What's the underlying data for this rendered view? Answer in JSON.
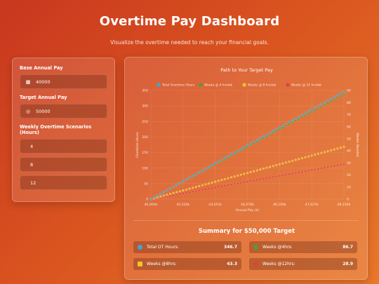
{
  "header": {
    "title": "Overtime Pay Dashboard",
    "subtitle": "Visualize the overtime needed to reach your financial goals."
  },
  "inputs": {
    "base_label": "Base Annual Pay",
    "base_value": "40000",
    "base_icon": "money-icon",
    "target_label": "Target Annual Pay",
    "target_value": "50000",
    "target_icon": "target-icon",
    "scenarios_label": "Weekly Overtime Scenarios (Hours)",
    "scenarios": [
      "4",
      "8",
      "12"
    ]
  },
  "chart_data": {
    "type": "line",
    "title": "Path to Your Target Pay",
    "xlabel": "Annual Pay ($)",
    "ylabel_left": "Overtime Hours",
    "ylabel_right": "Weeks Needed",
    "x_ticks": [
      "40,000k",
      "41,535k",
      "43,051k",
      "44,576k",
      "46,100k",
      "47,637k",
      "49,150k"
    ],
    "y_left_ticks": [
      "0",
      "50",
      "100",
      "150",
      "200",
      "250",
      "300",
      "350"
    ],
    "y_right_ticks": [
      "0",
      "10",
      "20",
      "30",
      "40",
      "50",
      "60",
      "70",
      "80",
      "90"
    ],
    "xlim": [
      40000,
      50000
    ],
    "ylim_left": [
      0,
      350
    ],
    "ylim_right": [
      0,
      90
    ],
    "legend_position": "top",
    "series": [
      {
        "name": "Total Overtime Hours",
        "axis": "left",
        "color": "#3aa6d8",
        "x_start": 40000,
        "x_end": 50000,
        "y_start": 0,
        "y_end": 346.7
      },
      {
        "name": "Weeks @ 4 hrs/wk",
        "axis": "right",
        "color": "#4f9e3a",
        "x_start": 40000,
        "x_end": 50000,
        "y_start": 0,
        "y_end": 86.7
      },
      {
        "name": "Weeks @ 8 hrs/wk",
        "axis": "right",
        "color": "#f2c12e",
        "x_start": 40000,
        "x_end": 50000,
        "y_start": 0,
        "y_end": 43.3
      },
      {
        "name": "Weeks @ 12 hrs/wk",
        "axis": "right",
        "color": "#e0433a",
        "x_start": 40000,
        "x_end": 50000,
        "y_start": 0,
        "y_end": 28.9
      }
    ]
  },
  "summary": {
    "title": "Summary for $50,000 Target",
    "items": [
      {
        "label": "Total OT Hours:",
        "value": "346.7",
        "color": "#3aa6d8"
      },
      {
        "label": "Weeks @4hrs:",
        "value": "86.7",
        "color": "#4f9e3a"
      },
      {
        "label": "Weeks @8hrs:",
        "value": "43.3",
        "color": "#f2c12e"
      },
      {
        "label": "Weeks @12hrs:",
        "value": "28.9",
        "color": "#e0433a"
      }
    ]
  }
}
